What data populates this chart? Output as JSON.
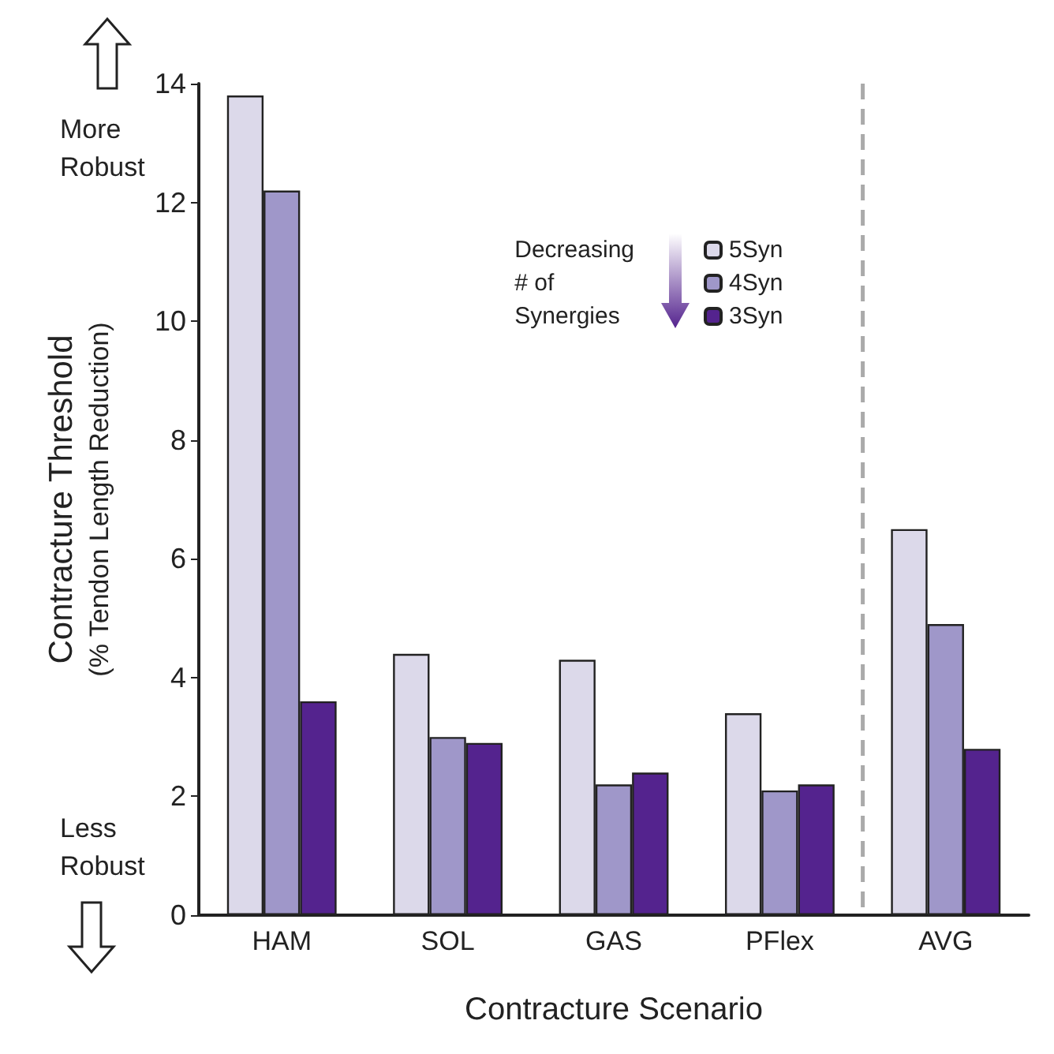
{
  "chart_data": {
    "type": "bar",
    "xlabel": "Contracture Scenario",
    "ylabel": "Contracture Threshold\n(% Tendon Length Reduction)",
    "legend_title": "Decreasing\n# of\nSynergies",
    "categories": [
      "HAM",
      "SOL",
      "GAS",
      "PFlex",
      "AVG"
    ],
    "series": [
      {
        "name": "5Syn",
        "color": "#dcd9ea",
        "values": [
          13.8,
          4.4,
          4.3,
          3.4,
          6.5
        ]
      },
      {
        "name": "4Syn",
        "color": "#9f97c9",
        "values": [
          12.2,
          3.0,
          2.2,
          2.1,
          4.9
        ]
      },
      {
        "name": "3Syn",
        "color": "#54238e",
        "values": [
          3.6,
          2.9,
          2.4,
          2.2,
          2.8
        ]
      }
    ],
    "ylim": [
      0,
      14
    ],
    "yticks": [
      0,
      2,
      4,
      6,
      8,
      10,
      12,
      14
    ],
    "grid": false,
    "legend": "top",
    "annotations": [
      "More\nRobust",
      "Less\nRobust"
    ]
  }
}
